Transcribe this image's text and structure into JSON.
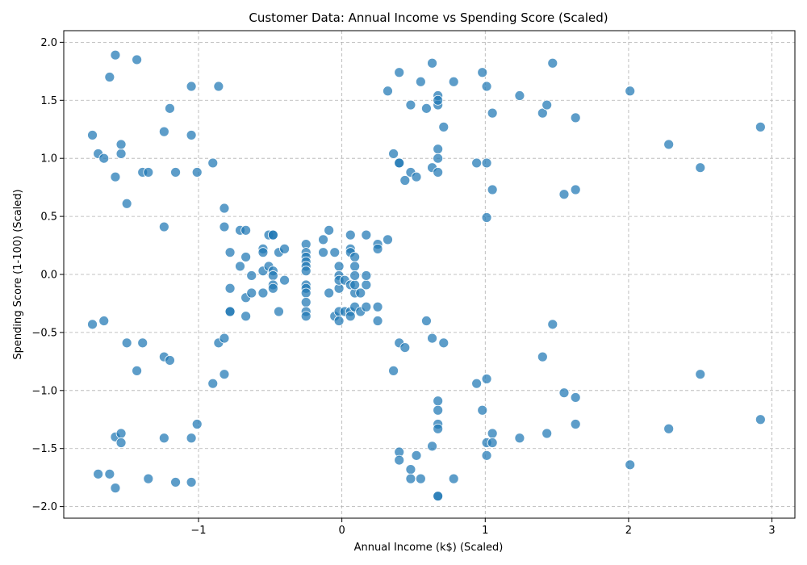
{
  "chart_data": {
    "type": "scatter",
    "title": "Customer Data: Annual Income vs Spending Score (Scaled)",
    "xlabel": "Annual Income (k$) (Scaled)",
    "ylabel": "Spending Score (1-100) (Scaled)",
    "xlim": [
      -1.94,
      3.16
    ],
    "ylim": [
      -2.1,
      2.1
    ],
    "xticks": [
      -1,
      0,
      1,
      2,
      3
    ],
    "xtick_labels": [
      "−1",
      "0",
      "1",
      "2",
      "3"
    ],
    "yticks": [
      -2.0,
      -1.5,
      -1.0,
      -0.5,
      0.0,
      0.5,
      1.0,
      1.5,
      2.0
    ],
    "ytick_labels": [
      "−2.0",
      "−1.5",
      "−1.0",
      "−0.5",
      "0.0",
      "0.5",
      "1.0",
      "1.5",
      "2.0"
    ],
    "grid": true,
    "marker_color": "#1f77b4",
    "series": [
      {
        "points": [
          [
            -1.74,
            -0.43
          ],
          [
            -1.74,
            1.2
          ],
          [
            -1.7,
            -1.72
          ],
          [
            -1.7,
            1.04
          ],
          [
            -1.66,
            -0.4
          ],
          [
            -1.66,
            1.0
          ],
          [
            -1.62,
            -1.72
          ],
          [
            -1.62,
            1.7
          ],
          [
            -1.58,
            -1.4
          ],
          [
            -1.58,
            0.84
          ],
          [
            -1.58,
            -1.84
          ],
          [
            -1.58,
            1.89
          ],
          [
            -1.54,
            -1.37
          ],
          [
            -1.54,
            1.04
          ],
          [
            -1.54,
            -1.45
          ],
          [
            -1.54,
            1.12
          ],
          [
            -1.5,
            -0.59
          ],
          [
            -1.5,
            0.61
          ],
          [
            -1.43,
            -0.83
          ],
          [
            -1.43,
            1.85
          ],
          [
            -1.39,
            -0.59
          ],
          [
            -1.39,
            0.88
          ],
          [
            -1.35,
            -1.76
          ],
          [
            -1.35,
            0.88
          ],
          [
            -1.24,
            -1.41
          ],
          [
            -1.24,
            1.23
          ],
          [
            -1.24,
            -0.71
          ],
          [
            -1.24,
            0.41
          ],
          [
            -1.2,
            -0.74
          ],
          [
            -1.2,
            1.43
          ],
          [
            -1.16,
            -1.79
          ],
          [
            -1.16,
            0.88
          ],
          [
            -1.05,
            -1.41
          ],
          [
            -1.05,
            1.62
          ],
          [
            -1.05,
            -1.79
          ],
          [
            -1.05,
            1.2
          ],
          [
            -1.01,
            -1.29
          ],
          [
            -1.01,
            0.88
          ],
          [
            -0.9,
            -0.94
          ],
          [
            -0.9,
            0.96
          ],
          [
            -0.86,
            -0.59
          ],
          [
            -0.86,
            1.62
          ],
          [
            -0.82,
            -0.55
          ],
          [
            -0.82,
            0.41
          ],
          [
            -0.82,
            -0.86
          ],
          [
            -0.82,
            0.57
          ],
          [
            -0.78,
            -0.32
          ],
          [
            -0.78,
            -0.32
          ],
          [
            -0.78,
            0.19
          ],
          [
            -0.78,
            -0.12
          ],
          [
            -0.71,
            0.38
          ],
          [
            -0.71,
            0.07
          ],
          [
            -0.67,
            0.15
          ],
          [
            -0.67,
            -0.2
          ],
          [
            -0.67,
            0.38
          ],
          [
            -0.67,
            -0.36
          ],
          [
            -0.63,
            -0.01
          ],
          [
            -0.63,
            -0.16
          ],
          [
            -0.55,
            0.22
          ],
          [
            -0.55,
            0.03
          ],
          [
            -0.55,
            0.19
          ],
          [
            -0.55,
            -0.16
          ],
          [
            -0.51,
            0.34
          ],
          [
            -0.51,
            0.07
          ],
          [
            -0.48,
            0.34
          ],
          [
            -0.48,
            0.34
          ],
          [
            -0.48,
            0.03
          ],
          [
            -0.48,
            -0.01
          ],
          [
            -0.48,
            -0.09
          ],
          [
            -0.48,
            -0.12
          ],
          [
            -0.44,
            -0.32
          ],
          [
            -0.44,
            0.19
          ],
          [
            -0.4,
            -0.05
          ],
          [
            -0.4,
            0.22
          ],
          [
            -0.25,
            0.26
          ],
          [
            -0.25,
            0.19
          ],
          [
            -0.25,
            0.15
          ],
          [
            -0.25,
            0.11
          ],
          [
            -0.25,
            0.07
          ],
          [
            -0.25,
            0.03
          ],
          [
            -0.25,
            -0.09
          ],
          [
            -0.25,
            -0.12
          ],
          [
            -0.25,
            -0.16
          ],
          [
            -0.25,
            -0.24
          ],
          [
            -0.25,
            -0.32
          ],
          [
            -0.25,
            -0.36
          ],
          [
            -0.13,
            0.3
          ],
          [
            -0.13,
            0.19
          ],
          [
            -0.09,
            -0.16
          ],
          [
            -0.09,
            0.38
          ],
          [
            -0.05,
            0.19
          ],
          [
            -0.05,
            -0.36
          ],
          [
            -0.02,
            0.07
          ],
          [
            -0.02,
            -0.32
          ],
          [
            -0.02,
            -0.01
          ],
          [
            -0.02,
            -0.12
          ],
          [
            -0.02,
            -0.4
          ],
          [
            -0.02,
            -0.05
          ],
          [
            0.02,
            -0.32
          ],
          [
            0.02,
            -0.05
          ],
          [
            0.06,
            0.34
          ],
          [
            0.06,
            0.22
          ],
          [
            0.06,
            0.19
          ],
          [
            0.06,
            -0.09
          ],
          [
            0.06,
            -0.32
          ],
          [
            0.06,
            -0.36
          ],
          [
            0.09,
            -0.16
          ],
          [
            0.09,
            0.15
          ],
          [
            0.09,
            -0.09
          ],
          [
            0.09,
            0.07
          ],
          [
            0.09,
            -0.01
          ],
          [
            0.09,
            -0.28
          ],
          [
            0.13,
            -0.16
          ],
          [
            0.13,
            -0.32
          ],
          [
            0.17,
            -0.09
          ],
          [
            0.17,
            0.34
          ],
          [
            0.17,
            -0.01
          ],
          [
            0.17,
            -0.28
          ],
          [
            0.25,
            0.26
          ],
          [
            0.25,
            0.22
          ],
          [
            0.25,
            -0.28
          ],
          [
            0.25,
            -0.4
          ],
          [
            0.32,
            1.58
          ],
          [
            0.32,
            0.3
          ],
          [
            0.36,
            -0.83
          ],
          [
            0.36,
            1.04
          ],
          [
            0.4,
            -1.53
          ],
          [
            0.4,
            0.96
          ],
          [
            0.4,
            -0.59
          ],
          [
            0.4,
            1.74
          ],
          [
            0.4,
            -1.6
          ],
          [
            0.4,
            0.96
          ],
          [
            0.44,
            -0.63
          ],
          [
            0.44,
            0.81
          ],
          [
            0.48,
            -1.68
          ],
          [
            0.48,
            1.46
          ],
          [
            0.48,
            -1.76
          ],
          [
            0.48,
            0.88
          ],
          [
            0.52,
            -1.56
          ],
          [
            0.52,
            0.84
          ],
          [
            0.55,
            -1.76
          ],
          [
            0.55,
            1.66
          ],
          [
            0.59,
            -0.4
          ],
          [
            0.59,
            1.43
          ],
          [
            0.63,
            -1.48
          ],
          [
            0.63,
            1.82
          ],
          [
            0.63,
            -0.55
          ],
          [
            0.63,
            0.92
          ],
          [
            0.67,
            -1.09
          ],
          [
            0.67,
            1.46
          ],
          [
            0.67,
            -1.29
          ],
          [
            0.67,
            1.08
          ],
          [
            0.67,
            -1.17
          ],
          [
            0.67,
            1.54
          ],
          [
            0.67,
            -1.33
          ],
          [
            0.67,
            1.0
          ],
          [
            0.67,
            -1.91
          ],
          [
            0.67,
            1.5
          ],
          [
            0.67,
            -1.91
          ],
          [
            0.67,
            0.88
          ],
          [
            0.71,
            -0.59
          ],
          [
            0.71,
            1.27
          ],
          [
            0.78,
            -1.76
          ],
          [
            0.78,
            1.66
          ],
          [
            0.94,
            -0.94
          ],
          [
            0.94,
            0.96
          ],
          [
            0.98,
            -1.17
          ],
          [
            0.98,
            1.74
          ],
          [
            1.01,
            -0.9
          ],
          [
            1.01,
            0.49
          ],
          [
            1.01,
            -1.45
          ],
          [
            1.01,
            0.96
          ],
          [
            1.01,
            -1.56
          ],
          [
            1.01,
            1.62
          ],
          [
            1.05,
            -1.37
          ],
          [
            1.05,
            1.39
          ],
          [
            1.05,
            -1.45
          ],
          [
            1.05,
            0.73
          ],
          [
            1.24,
            -1.41
          ],
          [
            1.24,
            1.54
          ],
          [
            1.4,
            -0.71
          ],
          [
            1.4,
            1.39
          ],
          [
            1.43,
            -1.37
          ],
          [
            1.43,
            1.46
          ],
          [
            1.47,
            -0.43
          ],
          [
            1.47,
            1.82
          ],
          [
            1.55,
            -1.02
          ],
          [
            1.55,
            0.69
          ],
          [
            1.63,
            -1.29
          ],
          [
            1.63,
            1.35
          ],
          [
            1.63,
            -1.06
          ],
          [
            1.63,
            0.73
          ],
          [
            2.01,
            -1.64
          ],
          [
            2.01,
            1.58
          ],
          [
            2.28,
            -1.33
          ],
          [
            2.28,
            1.12
          ],
          [
            2.5,
            -0.86
          ],
          [
            2.5,
            0.92
          ],
          [
            2.92,
            -1.25
          ],
          [
            2.92,
            1.27
          ]
        ]
      }
    ]
  }
}
